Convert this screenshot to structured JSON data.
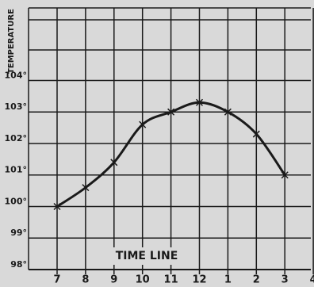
{
  "chart_data": {
    "type": "line",
    "x_label": "TIME LINE",
    "y_label": "TEMPERATURE",
    "categories": [
      "7",
      "8",
      "9",
      "10",
      "11",
      "12",
      "1",
      "2",
      "3",
      "4"
    ],
    "series": [
      {
        "name": "Temperature",
        "color": "#1a1a1a",
        "values": [
          100.0,
          100.6,
          101.4,
          102.6,
          103.0,
          103.3,
          103.0,
          102.3,
          101.0,
          null
        ]
      }
    ],
    "ylim": [
      98,
      106.3
    ],
    "yticks": [
      {
        "value": 98,
        "label": "98°"
      },
      {
        "value": 99,
        "label": "99°"
      },
      {
        "value": 100,
        "label": "100°"
      },
      {
        "value": 101,
        "label": "101°"
      },
      {
        "value": 102,
        "label": "102°"
      },
      {
        "value": 103,
        "label": "103°"
      },
      {
        "value": 104,
        "label": "104°"
      }
    ],
    "grid": true
  }
}
